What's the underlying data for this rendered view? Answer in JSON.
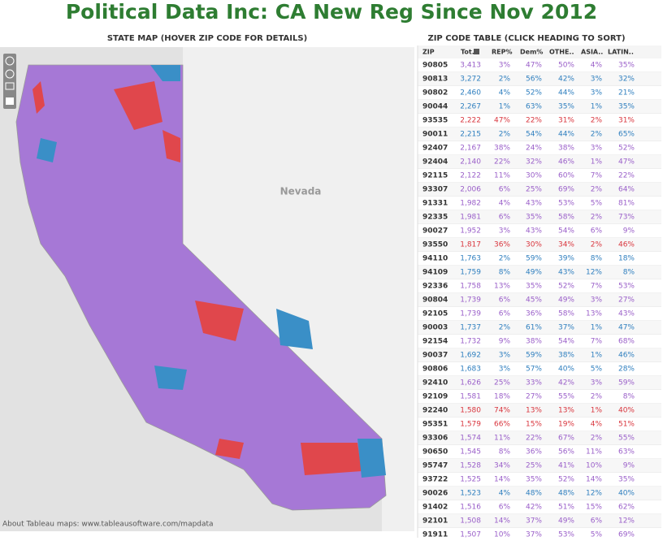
{
  "header": {
    "title": "Political Data Inc: CA New Reg Since Nov 2012"
  },
  "map": {
    "title": "STATE MAP (HOVER ZIP CODE FOR DETAILS)",
    "region_label": "Nevada",
    "attribution": "About Tableau maps: www.tableausoftware.com/mapdata"
  },
  "table": {
    "title": "ZIP CODE TABLE (CLICK HEADING TO SORT)",
    "columns": [
      "ZIP",
      "Tot..",
      "REP%",
      "Dem%",
      "OTHE..",
      "ASIA..",
      "LATIN.."
    ],
    "rows": [
      [
        "90805",
        "3,413",
        "3%",
        "47%",
        "50%",
        "4%",
        "35%"
      ],
      [
        "90813",
        "3,272",
        "2%",
        "56%",
        "42%",
        "3%",
        "32%"
      ],
      [
        "90802",
        "2,460",
        "4%",
        "52%",
        "44%",
        "3%",
        "21%"
      ],
      [
        "90044",
        "2,267",
        "1%",
        "63%",
        "35%",
        "1%",
        "35%"
      ],
      [
        "93535",
        "2,222",
        "47%",
        "22%",
        "31%",
        "2%",
        "31%"
      ],
      [
        "90011",
        "2,215",
        "2%",
        "54%",
        "44%",
        "2%",
        "65%"
      ],
      [
        "92407",
        "2,167",
        "38%",
        "24%",
        "38%",
        "3%",
        "52%"
      ],
      [
        "92404",
        "2,140",
        "22%",
        "32%",
        "46%",
        "1%",
        "47%"
      ],
      [
        "92115",
        "2,122",
        "11%",
        "30%",
        "60%",
        "7%",
        "22%"
      ],
      [
        "93307",
        "2,006",
        "6%",
        "25%",
        "69%",
        "2%",
        "64%"
      ],
      [
        "91331",
        "1,982",
        "4%",
        "43%",
        "53%",
        "5%",
        "81%"
      ],
      [
        "92335",
        "1,981",
        "6%",
        "35%",
        "58%",
        "2%",
        "73%"
      ],
      [
        "90027",
        "1,952",
        "3%",
        "43%",
        "54%",
        "6%",
        "9%"
      ],
      [
        "93550",
        "1,817",
        "36%",
        "30%",
        "34%",
        "2%",
        "46%"
      ],
      [
        "94110",
        "1,763",
        "2%",
        "59%",
        "39%",
        "8%",
        "18%"
      ],
      [
        "94109",
        "1,759",
        "8%",
        "49%",
        "43%",
        "12%",
        "8%"
      ],
      [
        "92336",
        "1,758",
        "13%",
        "35%",
        "52%",
        "7%",
        "53%"
      ],
      [
        "90804",
        "1,739",
        "6%",
        "45%",
        "49%",
        "3%",
        "27%"
      ],
      [
        "92105",
        "1,739",
        "6%",
        "36%",
        "58%",
        "13%",
        "43%"
      ],
      [
        "90003",
        "1,737",
        "2%",
        "61%",
        "37%",
        "1%",
        "47%"
      ],
      [
        "92154",
        "1,732",
        "9%",
        "38%",
        "54%",
        "7%",
        "68%"
      ],
      [
        "90037",
        "1,692",
        "3%",
        "59%",
        "38%",
        "1%",
        "46%"
      ],
      [
        "90806",
        "1,683",
        "3%",
        "57%",
        "40%",
        "5%",
        "28%"
      ],
      [
        "92410",
        "1,626",
        "25%",
        "33%",
        "42%",
        "3%",
        "59%"
      ],
      [
        "92109",
        "1,581",
        "18%",
        "27%",
        "55%",
        "2%",
        "8%"
      ],
      [
        "92240",
        "1,580",
        "74%",
        "13%",
        "13%",
        "1%",
        "40%"
      ],
      [
        "95351",
        "1,579",
        "66%",
        "15%",
        "19%",
        "4%",
        "51%"
      ],
      [
        "93306",
        "1,574",
        "11%",
        "22%",
        "67%",
        "2%",
        "55%"
      ],
      [
        "90650",
        "1,545",
        "8%",
        "36%",
        "56%",
        "11%",
        "63%"
      ],
      [
        "95747",
        "1,528",
        "34%",
        "25%",
        "41%",
        "10%",
        "9%"
      ],
      [
        "93722",
        "1,525",
        "14%",
        "35%",
        "52%",
        "14%",
        "35%"
      ],
      [
        "90026",
        "1,523",
        "4%",
        "48%",
        "48%",
        "12%",
        "40%"
      ],
      [
        "91402",
        "1,516",
        "6%",
        "42%",
        "51%",
        "15%",
        "62%"
      ],
      [
        "92101",
        "1,508",
        "14%",
        "37%",
        "49%",
        "6%",
        "12%"
      ],
      [
        "91911",
        "1,507",
        "10%",
        "37%",
        "53%",
        "5%",
        "69%"
      ]
    ],
    "row_colors": [
      "#9a5fc9",
      "#2f7fbf",
      "#2f7fbf",
      "#2f7fbf",
      "#d9363e",
      "#2f7fbf",
      "#9a5fc9",
      "#9a5fc9",
      "#9a5fc9",
      "#9a5fc9",
      "#9a5fc9",
      "#9a5fc9",
      "#9a5fc9",
      "#d9363e",
      "#2f7fbf",
      "#2f7fbf",
      "#9a5fc9",
      "#9a5fc9",
      "#9a5fc9",
      "#2f7fbf",
      "#9a5fc9",
      "#2f7fbf",
      "#2f7fbf",
      "#9a5fc9",
      "#9a5fc9",
      "#d9363e",
      "#d9363e",
      "#9a5fc9",
      "#9a5fc9",
      "#9a5fc9",
      "#9a5fc9",
      "#2f7fbf",
      "#9a5fc9",
      "#9a5fc9",
      "#9a5fc9"
    ]
  }
}
